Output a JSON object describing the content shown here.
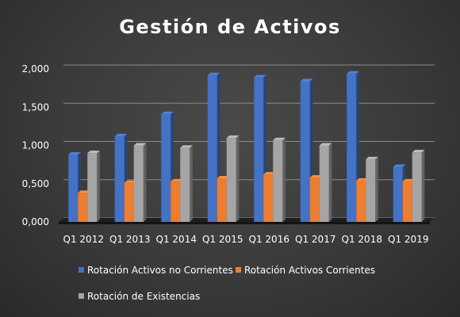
{
  "chart_data": {
    "type": "bar",
    "title": "Gestión de Activos",
    "categories": [
      "Q1 2012",
      "Q1 2013",
      "Q1 2014",
      "Q1 2015",
      "Q1 2016",
      "Q1 2017",
      "Q1 2018",
      "Q1 2019"
    ],
    "series": [
      {
        "name": "Rotación Activos no Corrientes",
        "color": "#4472c4",
        "values": [
          0.88,
          1.12,
          1.41,
          1.92,
          1.89,
          1.84,
          1.94,
          0.72
        ]
      },
      {
        "name": "Rotación Activos Corrientes",
        "color": "#ed7d31",
        "values": [
          0.38,
          0.51,
          0.53,
          0.57,
          0.62,
          0.58,
          0.54,
          0.53
        ]
      },
      {
        "name": "Rotación de Existencias",
        "color": "#a5a5a5",
        "values": [
          0.9,
          1.0,
          0.97,
          1.1,
          1.07,
          1.0,
          0.82,
          0.91
        ]
      }
    ],
    "yticks": [
      "0,000",
      "0,500",
      "1,000",
      "1,500",
      "2,000"
    ],
    "ytick_values": [
      0,
      0.5,
      1.0,
      1.5,
      2.0
    ],
    "ylim": [
      0,
      2.0
    ],
    "xlabel": "",
    "ylabel": "",
    "grid": true,
    "legend_position": "bottom"
  }
}
